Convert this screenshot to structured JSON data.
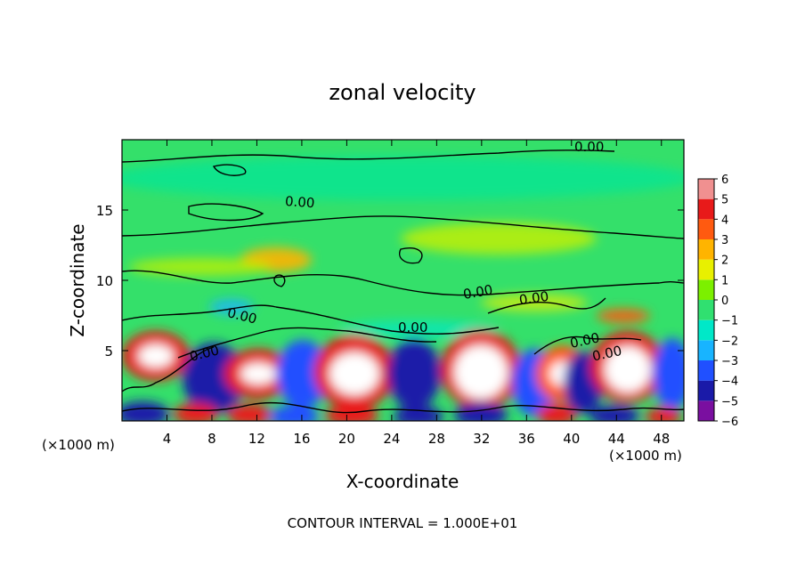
{
  "chart_data": {
    "type": "heatmap",
    "title": "zonal velocity",
    "xlabel": "X-coordinate",
    "ylabel": "Z-coordinate",
    "x_unit_left": "(×1000 m)",
    "x_unit_right": "(×1000 m)",
    "xlim": [
      0,
      50
    ],
    "ylim": [
      0,
      20
    ],
    "x_ticks": [
      4,
      8,
      12,
      16,
      20,
      24,
      28,
      32,
      36,
      40,
      44,
      48
    ],
    "y_ticks": [
      5,
      10,
      15
    ],
    "colorbar": {
      "min": -6,
      "max": 6,
      "tick_values": [
        6,
        5,
        4,
        3,
        2,
        1,
        0,
        -1,
        -2,
        -3,
        -4,
        -5,
        -6
      ],
      "tick_labels": [
        "6",
        "5",
        "4",
        "3",
        "2",
        "1",
        "0",
        "−1",
        "−2",
        "−3",
        "−4",
        "−5",
        "−6"
      ]
    },
    "contour_label": "0.00",
    "contour_interval_text": "CONTOUR INTERVAL = 1.000E+01",
    "colors": {
      "scale": [
        "#7a0fa0",
        "#1a1aa8",
        "#2050ff",
        "#18b4ff",
        "#00e8c8",
        "#30e070",
        "#7cf000",
        "#e8f000",
        "#ffb400",
        "#ff5a10",
        "#e81a1a",
        "#f09090"
      ],
      "background_field": "#34e06a",
      "positive_extreme": "#ffffff"
    }
  }
}
